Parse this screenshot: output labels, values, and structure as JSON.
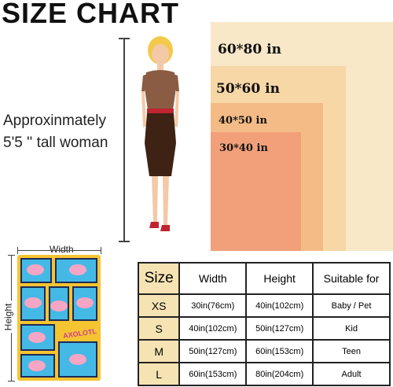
{
  "title": "SIZE CHART",
  "size_rects": [
    {
      "label": "60*80 in"
    },
    {
      "label": "50*60 in"
    },
    {
      "label": "40*50 in"
    },
    {
      "label": "30*40 in"
    }
  ],
  "woman_label": {
    "line1": "Approxinmately",
    "line2": "5'5 '' tall woman"
  },
  "blanket": {
    "width_label": "Width",
    "height_label": "Height",
    "print_text": "AXOLOTL"
  },
  "table": {
    "headers": [
      "Size",
      "Width",
      "Height",
      "Suitable for"
    ],
    "rows": [
      {
        "size": "XS",
        "width": "30in(76cm)",
        "height": "40in(102cm)",
        "suitable": "Baby / Pet"
      },
      {
        "size": "S",
        "width": "40in(102cm)",
        "height": "50in(127cm)",
        "suitable": "Kid"
      },
      {
        "size": "M",
        "width": "50in(127cm)",
        "height": "60in(153cm)",
        "suitable": "Teen"
      },
      {
        "size": "L",
        "width": "60in(153cm)",
        "height": "80in(204cm)",
        "suitable": "Adult"
      }
    ]
  },
  "colors": {
    "rect_1": "#f8e8c8",
    "rect_2": "#f7d7a6",
    "rect_3": "#f4bb86",
    "rect_4": "#f1a07a",
    "header_cell": "#f6e3b3",
    "blanket_frame": "#f5c431",
    "blanket_panel": "#45b9e6"
  }
}
